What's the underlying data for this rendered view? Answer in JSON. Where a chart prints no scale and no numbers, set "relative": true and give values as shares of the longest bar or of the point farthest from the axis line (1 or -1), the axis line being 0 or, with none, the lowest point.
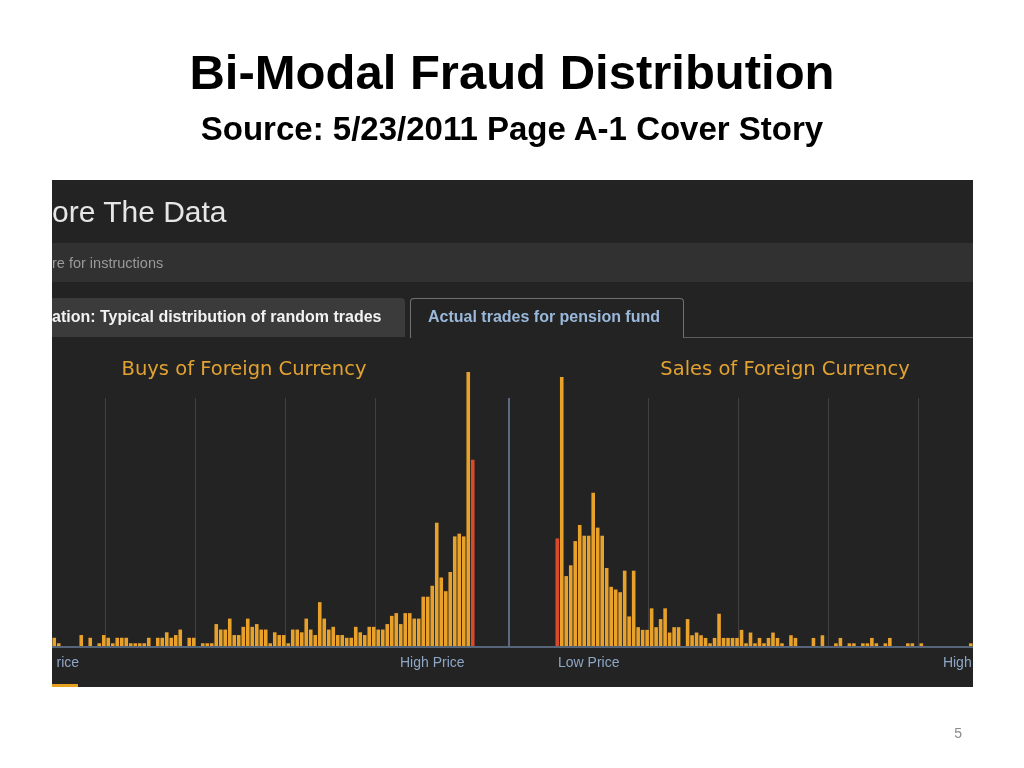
{
  "chart_data": [
    {
      "type": "other",
      "title": "Bi-Modal Fraud Distribution",
      "subtitle": "Source: 5/23/2011 Page A-1 Cover Story",
      "annotations": [
        "ore The Data",
        "re for instructions",
        "ation: Typical distribution of random trades",
        "Actual trades for pension fund",
        "5"
      ]
    },
    {
      "type": "bar",
      "title": "Buys of Foreign Currency",
      "relative": true,
      "categories": [
        null,
        null,
        null,
        "rice",
        null,
        null,
        null,
        null,
        null,
        null,
        null,
        null,
        null,
        null,
        null,
        null,
        null,
        null,
        null,
        null,
        null,
        null,
        null,
        null,
        null,
        null,
        null,
        null,
        null,
        null,
        null,
        null,
        null,
        null,
        null,
        null,
        null,
        null,
        null,
        null,
        null,
        null,
        null,
        null,
        null,
        null,
        null,
        null,
        null,
        null,
        null,
        null,
        null,
        null,
        null,
        null,
        null,
        null,
        null,
        null,
        null,
        null,
        null,
        null,
        null,
        null,
        null,
        null,
        null,
        null,
        null,
        null,
        null,
        null,
        null,
        null,
        null,
        null,
        null,
        null,
        null,
        null,
        null,
        null,
        "High Price",
        null,
        null,
        null,
        null,
        null,
        null,
        null,
        null,
        null
      ],
      "values": [
        0.03,
        0.01,
        0,
        0,
        0,
        0,
        0.04,
        0,
        0.03,
        0,
        0.01,
        0.04,
        0.03,
        0.01,
        0.03,
        0.03,
        0.03,
        0.01,
        0.01,
        0.01,
        0.01,
        0.03,
        0,
        0.03,
        0.03,
        0.05,
        0.03,
        0.04,
        0.06,
        0,
        0.03,
        0.03,
        0,
        0.01,
        0.01,
        0.01,
        0.08,
        0.06,
        0.06,
        0.1,
        0.04,
        0.04,
        0.07,
        0.1,
        0.07,
        0.08,
        0.06,
        0.06,
        0.01,
        0.05,
        0.04,
        0.04,
        0.01,
        0.06,
        0.06,
        0.05,
        0.1,
        0.06,
        0.04,
        0.16,
        0.1,
        0.06,
        0.07,
        0.04,
        0.04,
        0.03,
        0.03,
        0.07,
        0.05,
        0.04,
        0.07,
        0.07,
        0.06,
        0.06,
        0.08,
        0.11,
        0.12,
        0.08,
        0.12,
        0.12,
        0.1,
        0.1,
        0.18,
        0.18,
        0.22,
        0.45,
        0.25,
        0.2,
        0.27,
        0.4,
        0.41,
        0.4,
        1,
        0.68
      ],
      "colors": [
        "#e8a22c",
        "#e8a22c",
        "#e8a22c",
        "#e8a22c",
        "#e8a22c",
        "#e8a22c",
        "#e8a22c",
        "#e8a22c",
        "#e8a22c",
        "#e8a22c",
        "#e8a22c",
        "#e8a22c",
        "#e8a22c",
        "#e8a22c",
        "#e8a22c",
        "#e8a22c",
        "#e8a22c",
        "#e8a22c",
        "#e8a22c",
        "#e8a22c",
        "#e8a22c",
        "#e8a22c",
        "#e8a22c",
        "#e8a22c",
        "#e8a22c",
        "#e8a22c",
        "#e8a22c",
        "#e8a22c",
        "#e8a22c",
        "#e8a22c",
        "#e8a22c",
        "#e8a22c",
        "#e8a22c",
        "#e8a22c",
        "#e8a22c",
        "#e8a22c",
        "#e8a22c",
        "#e8a22c",
        "#e8a22c",
        "#e8a22c",
        "#e8a22c",
        "#e8a22c",
        "#e8a22c",
        "#e8a22c",
        "#e8a22c",
        "#e8a22c",
        "#e8a22c",
        "#e8a22c",
        "#e8a22c",
        "#e8a22c",
        "#e8a22c",
        "#e8a22c",
        "#e8a22c",
        "#e8a22c",
        "#e8a22c",
        "#e8a22c",
        "#e8a22c",
        "#e8a22c",
        "#e8a22c",
        "#e8a22c",
        "#e8a22c",
        "#e8a22c",
        "#e8a22c",
        "#e8a22c",
        "#e8a22c",
        "#e8a22c",
        "#e8a22c",
        "#e8a22c",
        "#e8a22c",
        "#e8a22c",
        "#e8a22c",
        "#e8a22c",
        "#e8a22c",
        "#e8a22c",
        "#e8a22c",
        "#e8a22c",
        "#e8a22c",
        "#e8a22c",
        "#e8a22c",
        "#e8a22c",
        "#e8a22c",
        "#e8a22c",
        "#e8a22c",
        "#e8a22c",
        "#e8a22c",
        "#e8a22c",
        "#e8a22c",
        "#e8a22c",
        "#e8a22c",
        "#e8a22c",
        "#e8a22c",
        "#e8a22c",
        "#e8a22c",
        "#d84a2a"
      ]
    },
    {
      "type": "bar",
      "title": "Sales of Foreign Currency",
      "relative": true,
      "categories": [
        null,
        null,
        null,
        null,
        null,
        null,
        null,
        "Low Price",
        null,
        null,
        null,
        null,
        null,
        null,
        null,
        null,
        null,
        null,
        null,
        null,
        null,
        null,
        null,
        null,
        null,
        null,
        null,
        null,
        null,
        null,
        null,
        null,
        null,
        null,
        null,
        null,
        null,
        null,
        null,
        null,
        null,
        null,
        null,
        null,
        null,
        null,
        null,
        null,
        null,
        null,
        null,
        null,
        null,
        null,
        null,
        null,
        null,
        null,
        null,
        null,
        null,
        null,
        null,
        null,
        null,
        null,
        null,
        null,
        null,
        null,
        null,
        null,
        null,
        null,
        null,
        null,
        null,
        null,
        null,
        null,
        null,
        null,
        null,
        null,
        null,
        null,
        null,
        null,
        null,
        "High",
        null,
        null,
        null
      ],
      "values": [
        0.4,
        1,
        0.26,
        0.3,
        0.39,
        0.45,
        0.41,
        0.41,
        0.57,
        0.44,
        0.41,
        0.29,
        0.22,
        0.21,
        0.2,
        0.28,
        0.11,
        0.28,
        0.07,
        0.06,
        0.06,
        0.14,
        0.07,
        0.1,
        0.14,
        0.05,
        0.07,
        0.07,
        0,
        0.1,
        0.04,
        0.05,
        0.04,
        0.03,
        0.01,
        0.03,
        0.12,
        0.03,
        0.03,
        0.03,
        0.03,
        0.06,
        0.01,
        0.05,
        0.01,
        0.03,
        0.01,
        0.03,
        0.05,
        0.03,
        0.01,
        0,
        0.04,
        0.03,
        0,
        0,
        0,
        0.03,
        0,
        0.04,
        0,
        0,
        0.01,
        0.03,
        0,
        0.01,
        0.01,
        0,
        0.01,
        0.01,
        0.03,
        0.01,
        0,
        0.01,
        0.03,
        0,
        0,
        0,
        0.01,
        0.01,
        0,
        0.01,
        0,
        0,
        0,
        0,
        0,
        0,
        0,
        0,
        0,
        0,
        0.01
      ],
      "colors": [
        "#d84a2a",
        "#e8a22c",
        "#e8a22c",
        "#e8a22c",
        "#e8a22c",
        "#e8a22c",
        "#e8a22c",
        "#e8a22c",
        "#e8a22c",
        "#e8a22c",
        "#e8a22c",
        "#e8a22c",
        "#e8a22c",
        "#e8a22c",
        "#e8a22c",
        "#e8a22c",
        "#e8a22c",
        "#e8a22c",
        "#e8a22c",
        "#e8a22c",
        "#e8a22c",
        "#e8a22c",
        "#e8a22c",
        "#e8a22c",
        "#e8a22c",
        "#e8a22c",
        "#e8a22c",
        "#e8a22c",
        "#e8a22c",
        "#e8a22c",
        "#e8a22c",
        "#e8a22c",
        "#e8a22c",
        "#e8a22c",
        "#e8a22c",
        "#e8a22c",
        "#e8a22c",
        "#e8a22c",
        "#e8a22c",
        "#e8a22c",
        "#e8a22c",
        "#e8a22c",
        "#e8a22c",
        "#e8a22c",
        "#e8a22c",
        "#e8a22c",
        "#e8a22c",
        "#e8a22c",
        "#e8a22c",
        "#e8a22c",
        "#e8a22c",
        "#e8a22c",
        "#e8a22c",
        "#e8a22c",
        "#e8a22c",
        "#e8a22c",
        "#e8a22c",
        "#e8a22c",
        "#e8a22c",
        "#e8a22c",
        "#e8a22c",
        "#e8a22c",
        "#e8a22c",
        "#e8a22c",
        "#e8a22c",
        "#e8a22c",
        "#e8a22c",
        "#e8a22c",
        "#e8a22c",
        "#e8a22c",
        "#e8a22c",
        "#e8a22c",
        "#e8a22c",
        "#e8a22c",
        "#e8a22c",
        "#e8a22c",
        "#e8a22c",
        "#e8a22c",
        "#e8a22c",
        "#e8a22c",
        "#e8a22c",
        "#e8a22c",
        "#e8a22c",
        "#e8a22c",
        "#e8a22c",
        "#e8a22c",
        "#e8a22c",
        "#e8a22c",
        "#e8a22c",
        "#e8a22c",
        "#e8a22c",
        "#e8a22c",
        "#e8a22c"
      ]
    }
  ]
}
